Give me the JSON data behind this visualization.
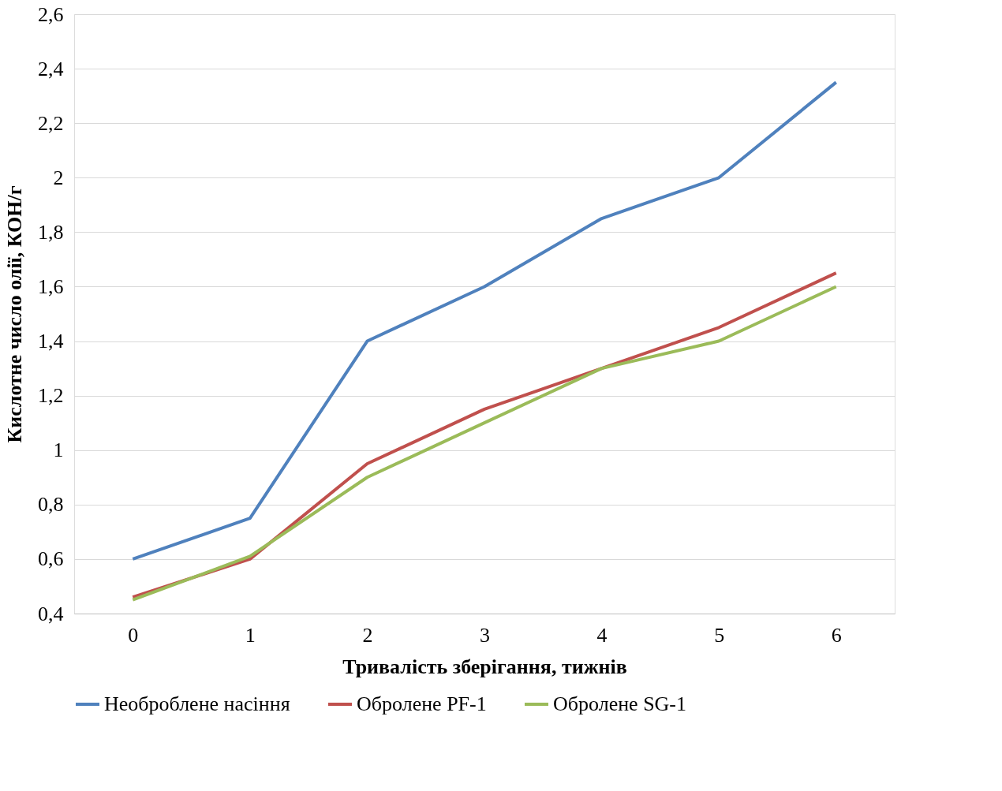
{
  "chart_data": {
    "type": "line",
    "xlabel": "Тривалість зберігання, тижнів",
    "ylabel": "Кислотне число олії, КОН/г",
    "categories": [
      "0",
      "1",
      "2",
      "3",
      "4",
      "5",
      "6"
    ],
    "series": [
      {
        "name": "Необроблене насіння",
        "color": "#4f81bd",
        "values": [
          0.6,
          0.75,
          1.4,
          1.6,
          1.85,
          2.0,
          2.35
        ]
      },
      {
        "name": "Обролене PF-1",
        "color": "#c0504d",
        "values": [
          0.46,
          0.6,
          0.95,
          1.15,
          1.3,
          1.45,
          1.65
        ]
      },
      {
        "name": "Обролене SG-1",
        "color": "#9bbb59",
        "values": [
          0.45,
          0.61,
          0.9,
          1.1,
          1.3,
          1.4,
          1.6
        ]
      }
    ],
    "ylim": [
      0.4,
      2.6
    ],
    "yticks": [
      {
        "value": 0.4,
        "label": "0,4"
      },
      {
        "value": 0.6,
        "label": "0,6"
      },
      {
        "value": 0.8,
        "label": "0,8"
      },
      1,
      {
        "value": 1.2,
        "label": "1,2"
      },
      {
        "value": 1.4,
        "label": "1,4"
      },
      {
        "value": 1.6,
        "label": "1,6"
      },
      {
        "value": 1.8,
        "label": "1,8"
      },
      2,
      {
        "value": 2.2,
        "label": "2,2"
      },
      {
        "value": 2.4,
        "label": "2,4"
      },
      {
        "value": 2.6,
        "label": "2,6"
      }
    ],
    "grid": "y",
    "legend": "bottom",
    "marker": "none",
    "line_style": "solid"
  }
}
